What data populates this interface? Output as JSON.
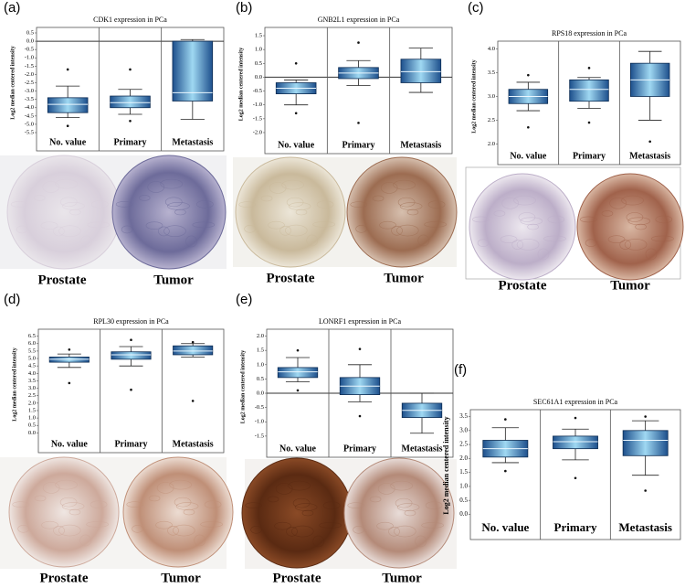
{
  "chart_data": [
    {
      "type": "box",
      "label": "(a)",
      "title": "CDK1 expression in PCa",
      "ylabel": "Log2 median centered intensity",
      "categories": [
        "No. value",
        "Primary",
        "Metastasis"
      ],
      "color": "#1d4f8c",
      "zero_line": true,
      "ylim": [
        -5.5,
        0.5
      ],
      "yticks": [
        0.5,
        {
          "value": 0,
          "label": "0.0"
        },
        -0.5,
        {
          "value": -1,
          "label": "-1.0"
        },
        -1.5,
        {
          "value": -2,
          "label": "-2.0"
        },
        -2.5,
        {
          "value": -3,
          "label": "-3.0"
        },
        -3.5,
        {
          "value": -4,
          "label": "-4.0"
        },
        -4.5,
        {
          "value": -5,
          "label": "-5.0"
        },
        -5.5
      ],
      "boxes": [
        {
          "low": -4.6,
          "q1": -4.3,
          "median": -3.8,
          "q3": -3.4,
          "high": -2.7,
          "outliers": [
            -1.7,
            -5.1
          ]
        },
        {
          "low": -4.4,
          "q1": -4.0,
          "median": -3.7,
          "q3": -3.3,
          "high": -2.9,
          "outliers": [
            -1.7,
            -4.8
          ]
        },
        {
          "low": -4.7,
          "q1": -3.6,
          "median": -3.1,
          "q3": 0.0,
          "high": 0.1,
          "outliers": []
        }
      ],
      "tissue_labels": [
        "Prostate",
        "Tumor"
      ]
    },
    {
      "type": "box",
      "label": "(b)",
      "title": "GNB2L1 expression in PCa",
      "ylabel": "Log2 median centered intensity",
      "categories": [
        "No. value",
        "Primary",
        "Metastasis"
      ],
      "color": "#1d4f8c",
      "zero_line": true,
      "ylim": [
        -2.1,
        1.6
      ],
      "yticks": [
        1.5,
        {
          "value": 1,
          "label": "1.0"
        },
        0.5,
        {
          "value": 0,
          "label": "0.0"
        },
        -0.5,
        {
          "value": -1,
          "label": "-1.0"
        },
        -1.5,
        {
          "value": -2,
          "label": "-2.0"
        }
      ],
      "boxes": [
        {
          "low": -1.0,
          "q1": -0.6,
          "median": -0.4,
          "q3": -0.2,
          "high": -0.1,
          "outliers": [
            0.5,
            -1.3
          ]
        },
        {
          "low": -0.3,
          "q1": -0.05,
          "median": 0.15,
          "q3": 0.35,
          "high": 0.6,
          "outliers": [
            1.25,
            -1.65
          ]
        },
        {
          "low": -0.55,
          "q1": -0.2,
          "median": 0.2,
          "q3": 0.65,
          "high": 1.05,
          "outliers": []
        }
      ],
      "tissue_labels": [
        "Prostate",
        "Tumor"
      ]
    },
    {
      "type": "box",
      "label": "(c)",
      "title": "RPS18 expression in PCa",
      "ylabel": "Log2 median centered intensity",
      "categories": [
        "No. value",
        "Primary",
        "Metastasis"
      ],
      "color": "#1d4f8c",
      "zero_line": false,
      "ylim": [
        1.95,
        4.05
      ],
      "yticks": [
        {
          "value": 2,
          "label": "2.0"
        },
        2.5,
        {
          "value": 3,
          "label": "3.0"
        },
        3.5,
        {
          "value": 4,
          "label": "4.0"
        }
      ],
      "boxes": [
        {
          "low": 2.7,
          "q1": 2.85,
          "median": 3.0,
          "q3": 3.15,
          "high": 3.3,
          "outliers": [
            3.45,
            2.35
          ]
        },
        {
          "low": 2.75,
          "q1": 2.9,
          "median": 3.15,
          "q3": 3.35,
          "high": 3.4,
          "outliers": [
            3.6,
            2.45
          ]
        },
        {
          "low": 2.5,
          "q1": 3.0,
          "median": 3.35,
          "q3": 3.7,
          "high": 3.95,
          "outliers": [
            2.05
          ]
        }
      ],
      "tissue_labels": [
        "Prostate",
        "Tumor"
      ]
    },
    {
      "type": "box",
      "label": "(d)",
      "title": "RPL30 expression in PCa",
      "ylabel": "Log2 median centered intensity",
      "categories": [
        "No. value",
        "Primary",
        "Metastasis"
      ],
      "color": "#1d4f8c",
      "zero_line": false,
      "ylim": [
        -0.1,
        6.6
      ],
      "yticks": [
        {
          "value": 0,
          "label": "0.0"
        },
        0.5,
        {
          "value": 1,
          "label": "1.0"
        },
        1.5,
        {
          "value": 2,
          "label": "2.0"
        },
        2.5,
        {
          "value": 3,
          "label": "3.0"
        },
        3.5,
        {
          "value": 4,
          "label": "4.0"
        },
        4.5,
        {
          "value": 5,
          "label": "5.0"
        },
        5.5,
        {
          "value": 6,
          "label": "6.0"
        },
        6.5
      ],
      "boxes": [
        {
          "low": 4.4,
          "q1": 4.75,
          "median": 4.95,
          "q3": 5.1,
          "high": 5.3,
          "outliers": [
            5.6,
            3.35
          ]
        },
        {
          "low": 4.5,
          "q1": 4.95,
          "median": 5.25,
          "q3": 5.45,
          "high": 5.8,
          "outliers": [
            6.25,
            2.9
          ]
        },
        {
          "low": 5.1,
          "q1": 5.25,
          "median": 5.5,
          "q3": 5.85,
          "high": 6.0,
          "outliers": [
            6.1,
            2.15
          ]
        }
      ],
      "tissue_labels": [
        "Prostate",
        "Tumor"
      ]
    },
    {
      "type": "box",
      "label": "(e)",
      "title": "LONRF1 expression in PCa",
      "ylabel": "Log2 median centered intensity",
      "categories": [
        "No. value",
        "Primary",
        "Metastasis"
      ],
      "color": "#1d4f8c",
      "zero_line": true,
      "ylim": [
        -1.6,
        2.05
      ],
      "yticks": [
        {
          "value": 2,
          "label": "2.0"
        },
        1.5,
        {
          "value": 1,
          "label": "1.0"
        },
        0.5,
        {
          "value": 0,
          "label": "0.0"
        },
        -0.5,
        {
          "value": -1,
          "label": "-1.0"
        },
        -1.5
      ],
      "boxes": [
        {
          "low": 0.4,
          "q1": 0.55,
          "median": 0.75,
          "q3": 0.9,
          "high": 1.25,
          "outliers": [
            1.5,
            0.1
          ]
        },
        {
          "low": -0.3,
          "q1": -0.05,
          "median": 0.25,
          "q3": 0.55,
          "high": 1.0,
          "outliers": [
            1.55,
            -0.8
          ]
        },
        {
          "low": -1.4,
          "q1": -0.85,
          "median": -0.6,
          "q3": -0.35,
          "high": 0.0,
          "outliers": []
        }
      ],
      "tissue_labels": [
        "Prostate",
        "Tumor"
      ]
    },
    {
      "type": "box",
      "label": "(f)",
      "title": "SEC61A1 expression in PCa",
      "ylabel": "Log2 median centered intensity",
      "categories": [
        "No. value",
        "Primary",
        "Metastasis"
      ],
      "color": "#1d4f8c",
      "zero_line": false,
      "ylim": [
        -0.05,
        3.55
      ],
      "yticks": [
        {
          "value": 0,
          "label": "0.0"
        },
        0.5,
        {
          "value": 1,
          "label": "1.0"
        },
        1.5,
        {
          "value": 2,
          "label": "2.0"
        },
        2.5,
        {
          "value": 3,
          "label": "3.0"
        },
        3.5
      ],
      "boxes": [
        {
          "low": 1.85,
          "q1": 2.05,
          "median": 2.35,
          "q3": 2.65,
          "high": 3.1,
          "outliers": [
            3.4,
            1.55
          ]
        },
        {
          "low": 1.95,
          "q1": 2.35,
          "median": 2.6,
          "q3": 2.8,
          "high": 3.05,
          "outliers": [
            3.45,
            1.3
          ]
        },
        {
          "low": 1.4,
          "q1": 2.1,
          "median": 2.65,
          "q3": 3.0,
          "high": 3.35,
          "outliers": [
            3.5,
            0.85
          ]
        }
      ]
    }
  ]
}
